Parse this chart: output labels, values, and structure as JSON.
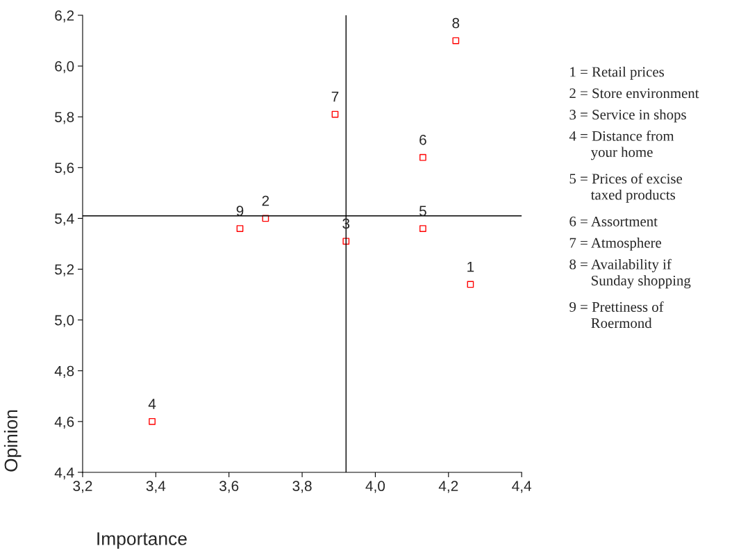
{
  "chart_data": {
    "type": "scatter",
    "xlabel": "Importance",
    "ylabel": "Opinion",
    "x": [
      4.26,
      3.7,
      3.92,
      3.39,
      4.13,
      4.13,
      3.89,
      4.22,
      3.63
    ],
    "series": [
      {
        "color": "#ff0000",
        "values": [
          5.14,
          5.4,
          5.31,
          4.6,
          5.36,
          5.64,
          5.81,
          6.1,
          5.36
        ]
      }
    ],
    "marker": "square",
    "grid": false,
    "legend": false,
    "xlim": [
      3.2,
      4.4
    ],
    "ylim": [
      4.4,
      6.2
    ],
    "xticks": [
      {
        "value": 3.2,
        "label": "3,2"
      },
      {
        "value": 3.4,
        "label": "3,4"
      },
      {
        "value": 3.6,
        "label": "3,6"
      },
      {
        "value": 3.8,
        "label": "3,8"
      },
      {
        "value": 4.0,
        "label": "4,0"
      },
      {
        "value": 4.2,
        "label": "4,2"
      },
      {
        "value": 4.4,
        "label": "4,4"
      }
    ],
    "yticks": [
      {
        "value": 4.4,
        "label": "4,4"
      },
      {
        "value": 4.6,
        "label": "4,6"
      },
      {
        "value": 4.8,
        "label": "4,8"
      },
      {
        "value": 5.0,
        "label": "5,0"
      },
      {
        "value": 5.2,
        "label": "5,2"
      },
      {
        "value": 5.4,
        "label": "5,4"
      },
      {
        "value": 5.6,
        "label": "5,6"
      },
      {
        "value": 5.8,
        "label": "5,8"
      },
      {
        "value": 6.0,
        "label": "6,0"
      },
      {
        "value": 6.2,
        "label": "6,2"
      }
    ],
    "ref_lines": [
      {
        "axis": "x",
        "value": 3.92,
        "color": "#000000"
      },
      {
        "axis": "y",
        "value": 5.41,
        "color": "#000000"
      }
    ],
    "annotations": [
      {
        "text": "1",
        "x": 4.26,
        "y": 5.14
      },
      {
        "text": "2",
        "x": 3.7,
        "y": 5.4
      },
      {
        "text": "3",
        "x": 3.92,
        "y": 5.31
      },
      {
        "text": "4",
        "x": 3.39,
        "y": 4.6
      },
      {
        "text": "5",
        "x": 4.13,
        "y": 5.36
      },
      {
        "text": "6",
        "x": 4.13,
        "y": 5.64
      },
      {
        "text": "7",
        "x": 3.89,
        "y": 5.81
      },
      {
        "text": "8",
        "x": 4.22,
        "y": 6.1
      },
      {
        "text": "9",
        "x": 3.63,
        "y": 5.36
      },
      "1 = Retail prices",
      "2 = Store environment",
      "3 = Service in shops",
      "4 = Distance from\n      your home",
      "5 = Prices of excise\n      taxed products",
      "6 = Assortment",
      "7 = Atmosphere",
      "8 = Availability if\n      Sunday shopping",
      "9 = Prettiness of\n      Roermond"
    ]
  }
}
